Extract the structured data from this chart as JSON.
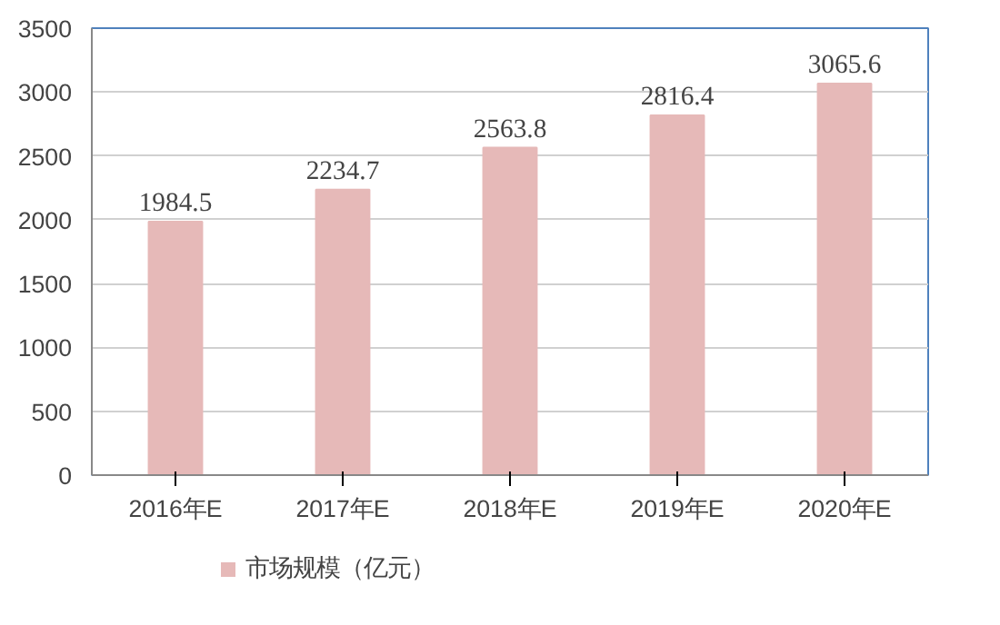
{
  "chart_data": {
    "type": "bar",
    "categories": [
      "2016年E",
      "2017年E",
      "2018年E",
      "2019年E",
      "2020年E"
    ],
    "series": [
      {
        "name": "市场规模（亿元）",
        "color": "#e6b9b8",
        "values": [
          1984.5,
          2234.7,
          2563.8,
          2816.4,
          3065.6
        ]
      }
    ],
    "ylim": [
      0,
      3500
    ],
    "yticks": [
      0,
      500,
      1000,
      1500,
      2000,
      2500,
      3000,
      3500
    ],
    "grid": "y",
    "legend": "bottom left",
    "data_labels": true
  }
}
